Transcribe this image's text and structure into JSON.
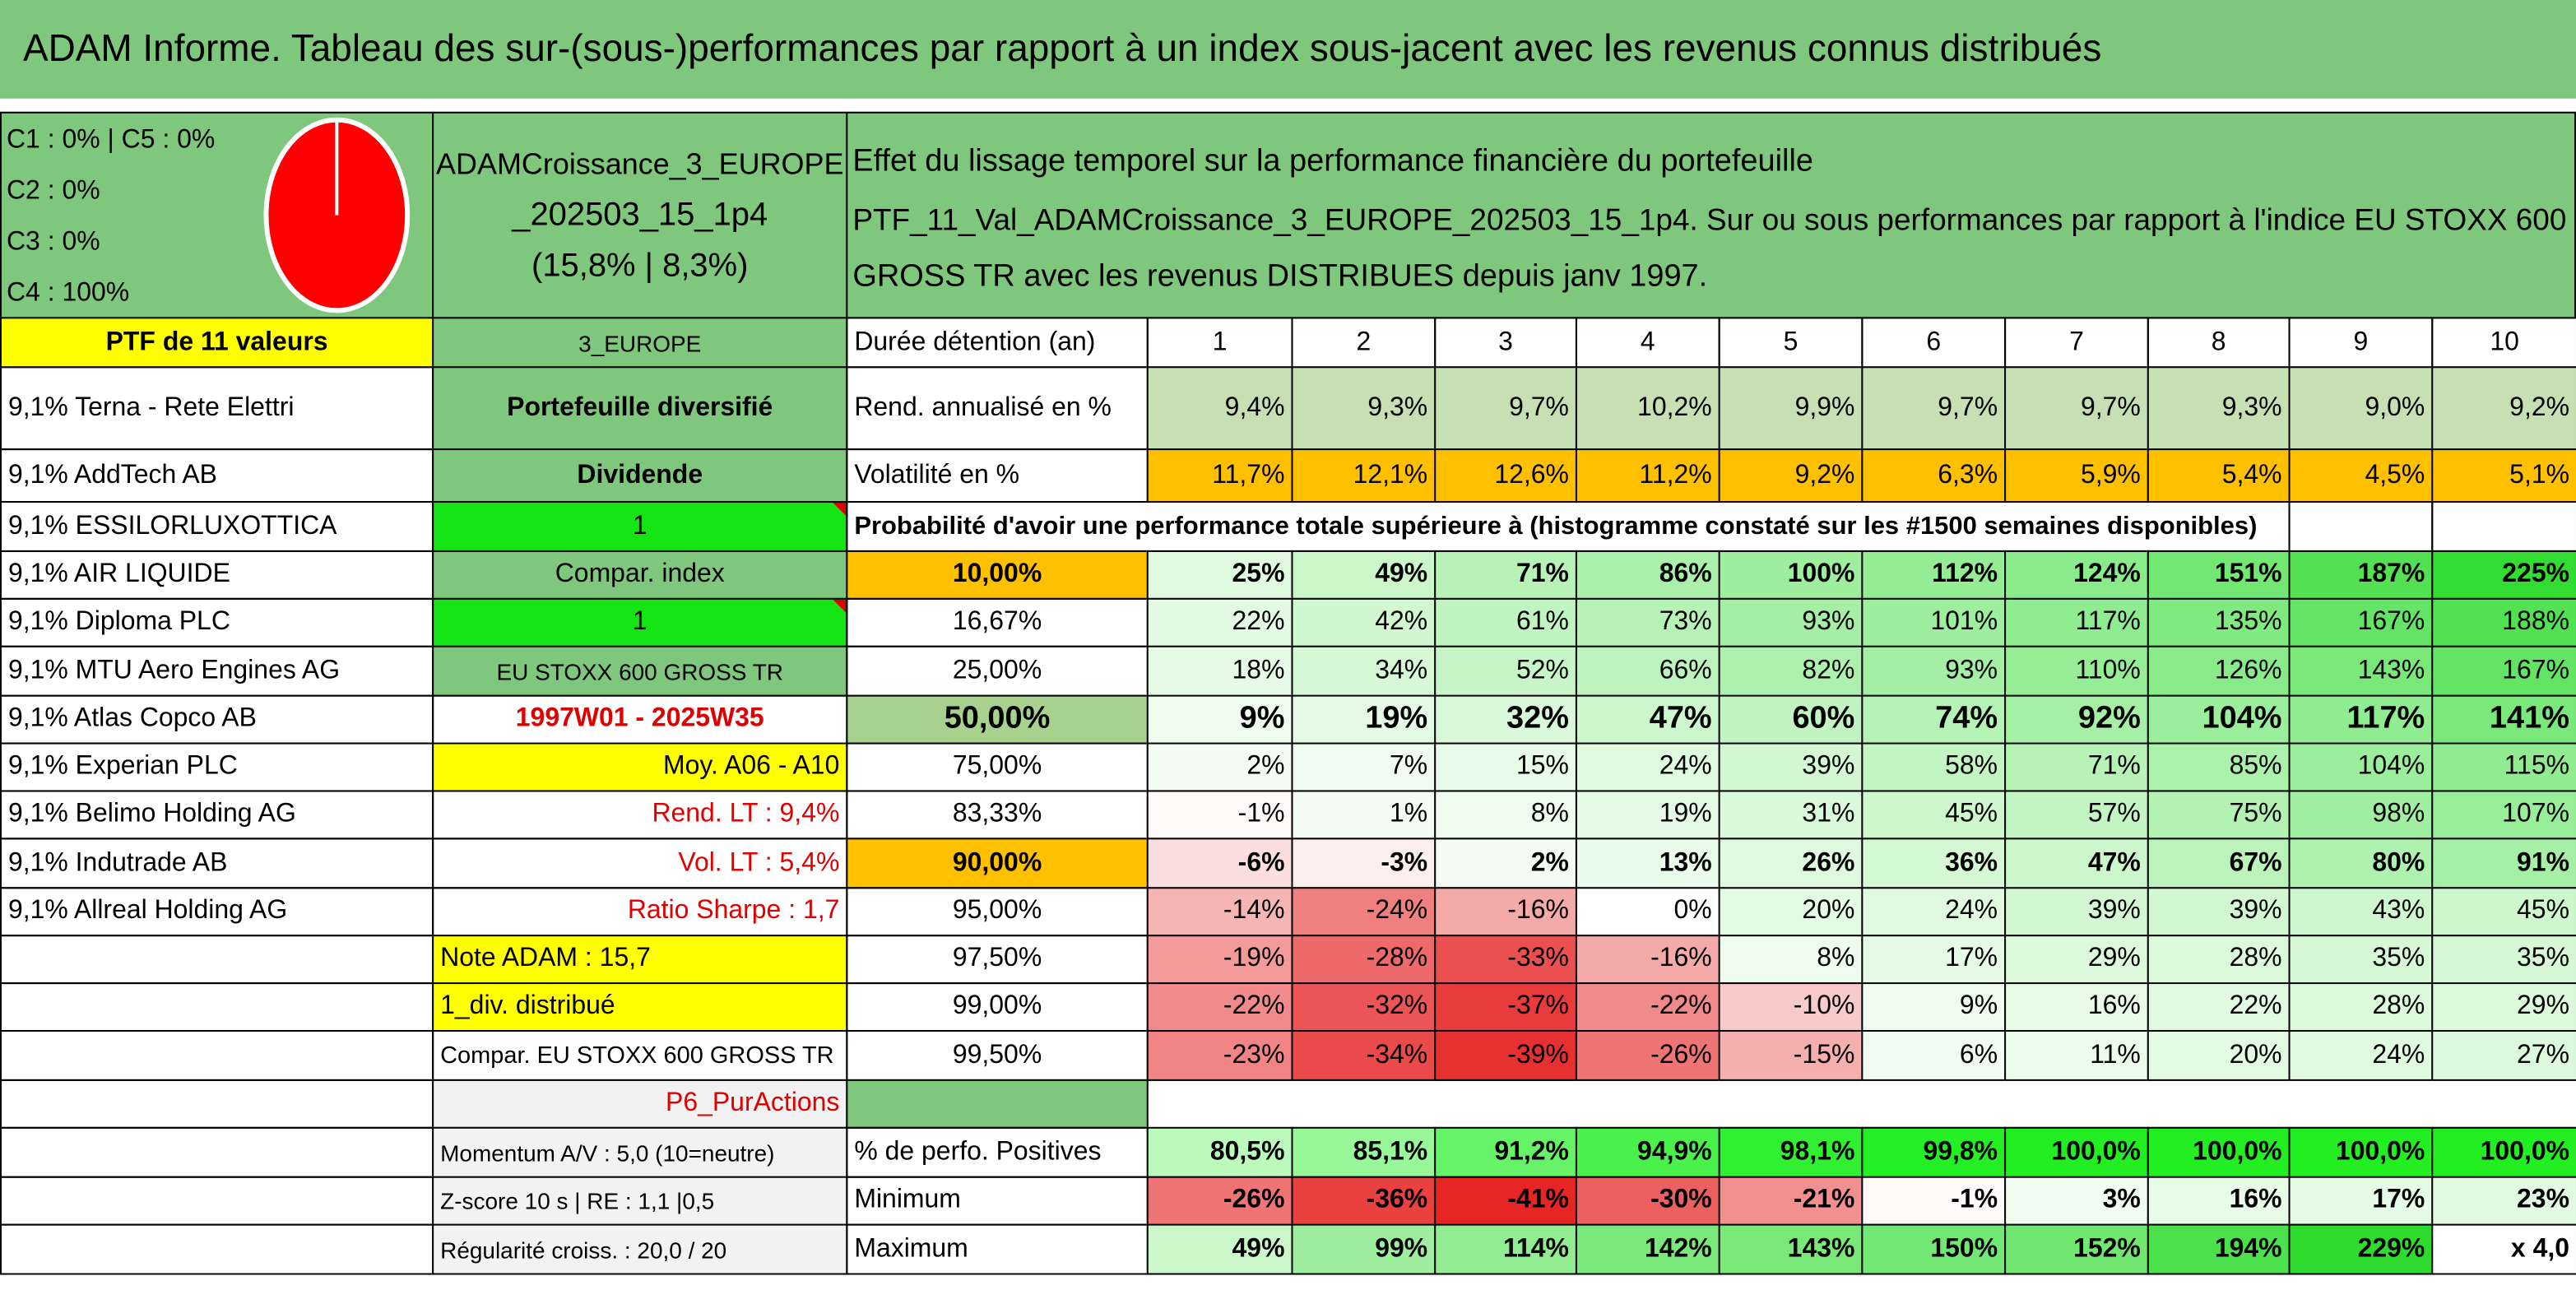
{
  "title": "ADAM Informe. Tableau des sur-(sous-)performances par rapport à un index sous-jacent avec les revenus connus distribués",
  "header": {
    "allocation": [
      "C1 : 0% | C5 : 0%",
      "C2 : 0%",
      "C3 : 0%",
      "C4 : 100%"
    ],
    "portfolio": [
      "ADAMCroissance_3_EUROPE",
      "_202503_15_1p4",
      "(15,8% | 8,3%)"
    ],
    "description": [
      "Effet du lissage temporel sur la performance financière du portefeuille",
      "PTF_11_Val_ADAMCroissance_3_EUROPE_202503_15_1p4. Sur ou sous performances par rapport à l'indice EU STOXX 600",
      "GROSS TR avec les revenus DISTRIBUES depuis janv 1997."
    ]
  },
  "holdings": {
    "heading": "PTF de 11 valeurs",
    "items": [
      "9,1% Terna - Rete Elettri",
      "9,1% AddTech AB",
      "9,1% ESSILORLUXOTTICA",
      "9,1% AIR LIQUIDE",
      "9,1% Diploma PLC",
      "9,1% MTU Aero Engines AG",
      "9,1% Atlas Copco AB",
      "9,1% Experian PLC",
      "9,1% Belimo Holding AG",
      "9,1% Indutrade AB",
      "9,1% Allreal Holding AG"
    ]
  },
  "side_panel": [
    "3_EUROPE",
    "Portefeuille diversifié",
    "Dividende",
    "1",
    "Compar. index",
    "1",
    "EU STOXX 600 GROSS TR",
    "1997W01 - 2025W35",
    "Moy. A06 - A10",
    "Rend. LT : 9,4%",
    "Vol. LT : 5,4%",
    "Ratio Sharpe : 1,7",
    "Note ADAM : 15,7",
    "1_div. distribué",
    "Compar. EU STOXX 600 GROSS TR",
    "P6_PurActions",
    "Momentum A/V : 5,0 (10=neutre)",
    "Z-score 10 s | RE : 1,1 |0,5",
    "Régularité croiss. : 20,0 / 20"
  ],
  "performance": {
    "horizon_label": "Durée détention (an)",
    "horizons": [
      "1",
      "2",
      "3",
      "4",
      "5",
      "6",
      "7",
      "8",
      "9",
      "10"
    ],
    "rows": [
      {
        "label": "Rend. annualisé en %",
        "values": [
          "9,4%",
          "9,3%",
          "9,7%",
          "10,2%",
          "9,9%",
          "9,7%",
          "9,7%",
          "9,3%",
          "9,0%",
          "9,2%"
        ]
      },
      {
        "label": "Volatilité en %",
        "values": [
          "11,7%",
          "12,1%",
          "12,6%",
          "11,2%",
          "9,2%",
          "6,3%",
          "5,9%",
          "5,4%",
          "4,5%",
          "5,1%"
        ]
      }
    ]
  },
  "probability": {
    "title": "Probabilité d'avoir une performance totale supérieure à (histogramme constaté sur les #1500 semaines disponibles)",
    "rows": [
      {
        "threshold": "10,00%",
        "values": [
          "25%",
          "49%",
          "71%",
          "86%",
          "100%",
          "112%",
          "124%",
          "151%",
          "187%",
          "225%"
        ]
      },
      {
        "threshold": "16,67%",
        "values": [
          "22%",
          "42%",
          "61%",
          "73%",
          "93%",
          "101%",
          "117%",
          "135%",
          "167%",
          "188%"
        ]
      },
      {
        "threshold": "25,00%",
        "values": [
          "18%",
          "34%",
          "52%",
          "66%",
          "82%",
          "93%",
          "110%",
          "126%",
          "143%",
          "167%"
        ]
      },
      {
        "threshold": "50,00%",
        "values": [
          "9%",
          "19%",
          "32%",
          "47%",
          "60%",
          "74%",
          "92%",
          "104%",
          "117%",
          "141%"
        ]
      },
      {
        "threshold": "75,00%",
        "values": [
          "2%",
          "7%",
          "15%",
          "24%",
          "39%",
          "58%",
          "71%",
          "85%",
          "104%",
          "115%"
        ]
      },
      {
        "threshold": "83,33%",
        "values": [
          "-1%",
          "1%",
          "8%",
          "19%",
          "31%",
          "45%",
          "57%",
          "75%",
          "98%",
          "107%"
        ]
      },
      {
        "threshold": "90,00%",
        "values": [
          "-6%",
          "-3%",
          "2%",
          "13%",
          "26%",
          "36%",
          "47%",
          "67%",
          "80%",
          "91%"
        ]
      },
      {
        "threshold": "95,00%",
        "values": [
          "-14%",
          "-24%",
          "-16%",
          "0%",
          "20%",
          "24%",
          "39%",
          "39%",
          "43%",
          "45%"
        ]
      },
      {
        "threshold": "97,50%",
        "values": [
          "-19%",
          "-28%",
          "-33%",
          "-16%",
          "8%",
          "17%",
          "29%",
          "28%",
          "35%",
          "35%"
        ]
      },
      {
        "threshold": "99,00%",
        "values": [
          "-22%",
          "-32%",
          "-37%",
          "-22%",
          "-10%",
          "9%",
          "16%",
          "22%",
          "28%",
          "29%"
        ]
      },
      {
        "threshold": "99,50%",
        "values": [
          "-23%",
          "-34%",
          "-39%",
          "-26%",
          "-15%",
          "6%",
          "11%",
          "20%",
          "24%",
          "27%"
        ]
      }
    ]
  },
  "statistics": {
    "rows": [
      {
        "label": "% de perfo. Positives",
        "values": [
          "80,5%",
          "85,1%",
          "91,2%",
          "94,9%",
          "98,1%",
          "99,8%",
          "100,0%",
          "100,0%",
          "100,0%",
          "100,0%"
        ]
      },
      {
        "label": "Minimum",
        "values": [
          "-26%",
          "-36%",
          "-41%",
          "-30%",
          "-21%",
          "-1%",
          "3%",
          "16%",
          "17%",
          "23%"
        ]
      },
      {
        "label": "Maximum",
        "values": [
          "49%",
          "99%",
          "114%",
          "142%",
          "143%",
          "150%",
          "152%",
          "194%",
          "229%",
          "x 4,0"
        ]
      }
    ]
  }
}
